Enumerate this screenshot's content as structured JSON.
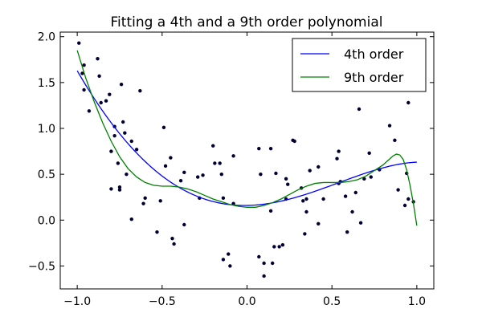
{
  "chart_data": {
    "type": "scatter",
    "title": "Fitting a 4th and a 9th order polynomial",
    "xlabel": "",
    "ylabel": "",
    "xlim": [
      -1.1,
      1.1
    ],
    "ylim": [
      -0.75,
      2.05
    ],
    "grid": false,
    "legend_placement": "top-right",
    "x_ticks": [
      {
        "value": -1.0,
        "label": "−1.0"
      },
      {
        "value": -0.5,
        "label": "−0.5"
      },
      {
        "value": 0.0,
        "label": "0.0"
      },
      {
        "value": 0.5,
        "label": "0.5"
      },
      {
        "value": 1.0,
        "label": "1.0"
      }
    ],
    "y_ticks": [
      {
        "value": -0.5,
        "label": "−0.5"
      },
      {
        "value": 0.0,
        "label": "0.0"
      },
      {
        "value": 0.5,
        "label": "0.5"
      },
      {
        "value": 1.0,
        "label": "1.0"
      },
      {
        "value": 1.5,
        "label": "1.5"
      },
      {
        "value": 2.0,
        "label": "2.0"
      }
    ],
    "scatter_points": [
      [
        -0.99,
        1.93
      ],
      [
        -0.97,
        1.6
      ],
      [
        -0.96,
        1.42
      ],
      [
        -0.96,
        1.69
      ],
      [
        -0.93,
        1.19
      ],
      [
        -0.88,
        1.76
      ],
      [
        -0.87,
        1.57
      ],
      [
        -0.86,
        1.28
      ],
      [
        -0.83,
        1.3
      ],
      [
        -0.81,
        1.37
      ],
      [
        -0.8,
        0.75
      ],
      [
        -0.8,
        0.34
      ],
      [
        -0.78,
        1.02
      ],
      [
        -0.78,
        0.92
      ],
      [
        -0.76,
        0.62
      ],
      [
        -0.75,
        0.33
      ],
      [
        -0.75,
        0.36
      ],
      [
        -0.74,
        1.48
      ],
      [
        -0.73,
        1.07
      ],
      [
        -0.72,
        0.95
      ],
      [
        -0.71,
        0.5
      ],
      [
        -0.68,
        0.01
      ],
      [
        -0.68,
        0.86
      ],
      [
        -0.65,
        0.77
      ],
      [
        -0.63,
        1.41
      ],
      [
        -0.61,
        0.18
      ],
      [
        -0.6,
        0.24
      ],
      [
        -0.53,
        -0.13
      ],
      [
        -0.51,
        0.21
      ],
      [
        -0.49,
        1.01
      ],
      [
        -0.48,
        0.59
      ],
      [
        -0.45,
        0.68
      ],
      [
        -0.44,
        -0.2
      ],
      [
        -0.43,
        -0.26
      ],
      [
        -0.39,
        0.43
      ],
      [
        -0.37,
        0.52
      ],
      [
        -0.37,
        -0.05
      ],
      [
        -0.29,
        0.47
      ],
      [
        -0.28,
        0.24
      ],
      [
        -0.26,
        0.49
      ],
      [
        -0.2,
        0.81
      ],
      [
        -0.19,
        0.62
      ],
      [
        -0.16,
        0.62
      ],
      [
        -0.15,
        0.5
      ],
      [
        -0.14,
        0.24
      ],
      [
        -0.14,
        -0.43
      ],
      [
        -0.11,
        -0.37
      ],
      [
        -0.1,
        -0.5
      ],
      [
        -0.08,
        0.7
      ],
      [
        -0.08,
        0.18
      ],
      [
        0.07,
        0.78
      ],
      [
        0.07,
        -0.4
      ],
      [
        0.08,
        0.5
      ],
      [
        0.1,
        -0.61
      ],
      [
        0.1,
        -0.47
      ],
      [
        0.14,
        0.1
      ],
      [
        0.14,
        0.78
      ],
      [
        0.15,
        -0.47
      ],
      [
        0.16,
        -0.29
      ],
      [
        0.17,
        0.51
      ],
      [
        0.19,
        -0.29
      ],
      [
        0.21,
        -0.27
      ],
      [
        0.23,
        0.23
      ],
      [
        0.23,
        0.45
      ],
      [
        0.24,
        0.39
      ],
      [
        0.27,
        0.87
      ],
      [
        0.28,
        0.86
      ],
      [
        0.32,
        0.35
      ],
      [
        0.33,
        0.21
      ],
      [
        0.34,
        -0.15
      ],
      [
        0.35,
        0.23
      ],
      [
        0.35,
        0.09
      ],
      [
        0.37,
        0.54
      ],
      [
        0.42,
        0.58
      ],
      [
        0.42,
        -0.04
      ],
      [
        0.45,
        0.23
      ],
      [
        0.53,
        0.67
      ],
      [
        0.54,
        0.4
      ],
      [
        0.54,
        0.75
      ],
      [
        0.55,
        0.42
      ],
      [
        0.58,
        0.26
      ],
      [
        0.59,
        -0.13
      ],
      [
        0.62,
        0.09
      ],
      [
        0.64,
        0.3
      ],
      [
        0.66,
        1.21
      ],
      [
        0.67,
        -0.03
      ],
      [
        0.69,
        0.45
      ],
      [
        0.72,
        0.73
      ],
      [
        0.73,
        0.47
      ],
      [
        0.78,
        0.55
      ],
      [
        0.84,
        1.03
      ],
      [
        0.87,
        0.87
      ],
      [
        0.89,
        0.33
      ],
      [
        0.93,
        0.16
      ],
      [
        0.94,
        0.51
      ],
      [
        0.95,
        1.28
      ],
      [
        0.95,
        0.23
      ],
      [
        0.98,
        0.2
      ]
    ],
    "series": [
      {
        "name": "4th order",
        "color": "#0000ff",
        "coefficients": [
          0.16,
          0.032,
          1.12,
          -0.53,
          -0.15
        ]
      },
      {
        "name": "9th order",
        "color": "#008000",
        "points": [
          [
            -1.0,
            1.85
          ],
          [
            -0.95,
            1.55
          ],
          [
            -0.9,
            1.29
          ],
          [
            -0.85,
            1.06
          ],
          [
            -0.8,
            0.86
          ],
          [
            -0.75,
            0.69
          ],
          [
            -0.7,
            0.56
          ],
          [
            -0.65,
            0.47
          ],
          [
            -0.6,
            0.41
          ],
          [
            -0.55,
            0.38
          ],
          [
            -0.5,
            0.37
          ],
          [
            -0.45,
            0.37
          ],
          [
            -0.4,
            0.36
          ],
          [
            -0.35,
            0.34
          ],
          [
            -0.3,
            0.31
          ],
          [
            -0.25,
            0.27
          ],
          [
            -0.2,
            0.23
          ],
          [
            -0.15,
            0.2
          ],
          [
            -0.1,
            0.17
          ],
          [
            -0.05,
            0.15
          ],
          [
            0.0,
            0.14
          ],
          [
            0.05,
            0.14
          ],
          [
            0.1,
            0.16
          ],
          [
            0.15,
            0.19
          ],
          [
            0.2,
            0.23
          ],
          [
            0.25,
            0.28
          ],
          [
            0.3,
            0.33
          ],
          [
            0.35,
            0.37
          ],
          [
            0.4,
            0.4
          ],
          [
            0.45,
            0.41
          ],
          [
            0.5,
            0.41
          ],
          [
            0.55,
            0.41
          ],
          [
            0.6,
            0.42
          ],
          [
            0.65,
            0.44
          ],
          [
            0.7,
            0.48
          ],
          [
            0.75,
            0.54
          ],
          [
            0.8,
            0.6
          ],
          [
            0.83,
            0.65
          ],
          [
            0.86,
            0.7
          ],
          [
            0.88,
            0.72
          ],
          [
            0.9,
            0.71
          ],
          [
            0.92,
            0.66
          ],
          [
            0.94,
            0.55
          ],
          [
            0.96,
            0.38
          ],
          [
            0.98,
            0.18
          ],
          [
            1.0,
            -0.06
          ]
        ]
      }
    ]
  }
}
